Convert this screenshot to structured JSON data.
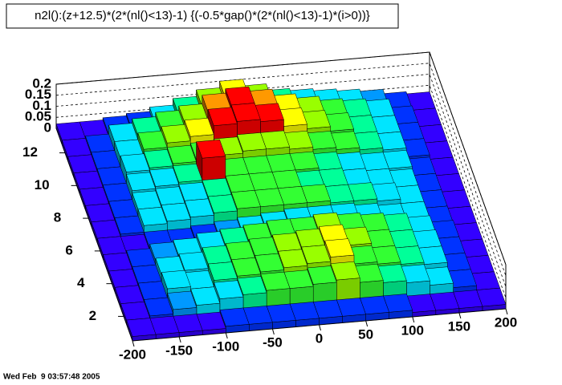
{
  "chart_data": {
    "type": "lego",
    "title": "n2l():(z+12.5)*(2*(nl()<13)-1) {(-0.5*gap()*(2*(nl()<13)-1)*(i>0))}",
    "timestamp": "Wed Feb  9 03:57:48 2005",
    "xlim": [
      -200,
      200
    ],
    "ylim": [
      0.5,
      13.5
    ],
    "zlim": [
      0,
      0.2
    ],
    "xticks": [
      -200,
      -150,
      -100,
      -50,
      0,
      50,
      100,
      150,
      200
    ],
    "yticks": [
      2,
      4,
      6,
      8,
      10,
      12
    ],
    "zticks": [
      0,
      0.05,
      0.1,
      0.15,
      0.2
    ],
    "grid": true,
    "palette": [
      "#3300ff",
      "#0033ff",
      "#0099ff",
      "#00e5ff",
      "#00ff99",
      "#33ff33",
      "#99ff00",
      "#ffff00",
      "#ff9900",
      "#ff0000"
    ],
    "z": [
      [
        0.02,
        0.02,
        0.02,
        0.02,
        0.03,
        0.03,
        0.03,
        0.03,
        0.03,
        0.03,
        0.03,
        0.03,
        0.02,
        0.02,
        0.02,
        0.02
      ],
      [
        0.02,
        0.03,
        0.05,
        0.06,
        0.08,
        0.09,
        0.1,
        0.1,
        0.11,
        0.12,
        0.1,
        0.09,
        0.08,
        0.06,
        0.04,
        0.02
      ],
      [
        0.02,
        0.03,
        0.07,
        0.06,
        0.09,
        0.1,
        0.11,
        0.12,
        0.13,
        0.15,
        0.11,
        0.1,
        0.09,
        0.08,
        0.04,
        0.02
      ],
      [
        0.02,
        0.03,
        0.06,
        0.07,
        0.09,
        0.1,
        0.11,
        0.12,
        0.13,
        0.14,
        0.12,
        0.1,
        0.09,
        0.08,
        0.04,
        0.02
      ],
      [
        0.02,
        0.03,
        0.05,
        0.06,
        0.08,
        0.09,
        0.1,
        0.11,
        0.11,
        0.12,
        0.11,
        0.1,
        0.09,
        0.07,
        0.04,
        0.02
      ],
      [
        0.02,
        0.02,
        0.03,
        0.03,
        0.04,
        0.05,
        0.06,
        0.07,
        0.08,
        0.08,
        0.08,
        0.07,
        0.06,
        0.06,
        0.03,
        0.02
      ],
      [
        0.02,
        0.03,
        0.06,
        0.07,
        0.08,
        0.09,
        0.1,
        0.1,
        0.1,
        0.1,
        0.09,
        0.09,
        0.08,
        0.06,
        0.03,
        0.02
      ],
      [
        0.02,
        0.03,
        0.06,
        0.07,
        0.08,
        0.09,
        0.1,
        0.1,
        0.1,
        0.09,
        0.09,
        0.08,
        0.07,
        0.06,
        0.03,
        0.02
      ],
      [
        0.02,
        0.03,
        0.07,
        0.08,
        0.09,
        0.19,
        0.1,
        0.1,
        0.1,
        0.1,
        0.09,
        0.08,
        0.07,
        0.07,
        0.03,
        0.02
      ],
      [
        0.02,
        0.03,
        0.08,
        0.09,
        0.1,
        0.11,
        0.12,
        0.13,
        0.13,
        0.12,
        0.11,
        0.1,
        0.09,
        0.08,
        0.04,
        0.02
      ],
      [
        0.02,
        0.03,
        0.07,
        0.1,
        0.12,
        0.14,
        0.18,
        0.19,
        0.18,
        0.15,
        0.13,
        0.11,
        0.09,
        0.08,
        0.04,
        0.02
      ],
      [
        0.02,
        0.03,
        0.07,
        0.09,
        0.11,
        0.13,
        0.17,
        0.19,
        0.17,
        0.14,
        0.12,
        0.1,
        0.09,
        0.08,
        0.04,
        0.02
      ],
      [
        0.02,
        0.02,
        0.03,
        0.04,
        0.06,
        0.09,
        0.12,
        0.15,
        0.12,
        0.09,
        0.08,
        0.07,
        0.06,
        0.05,
        0.03,
        0.02
      ]
    ]
  }
}
